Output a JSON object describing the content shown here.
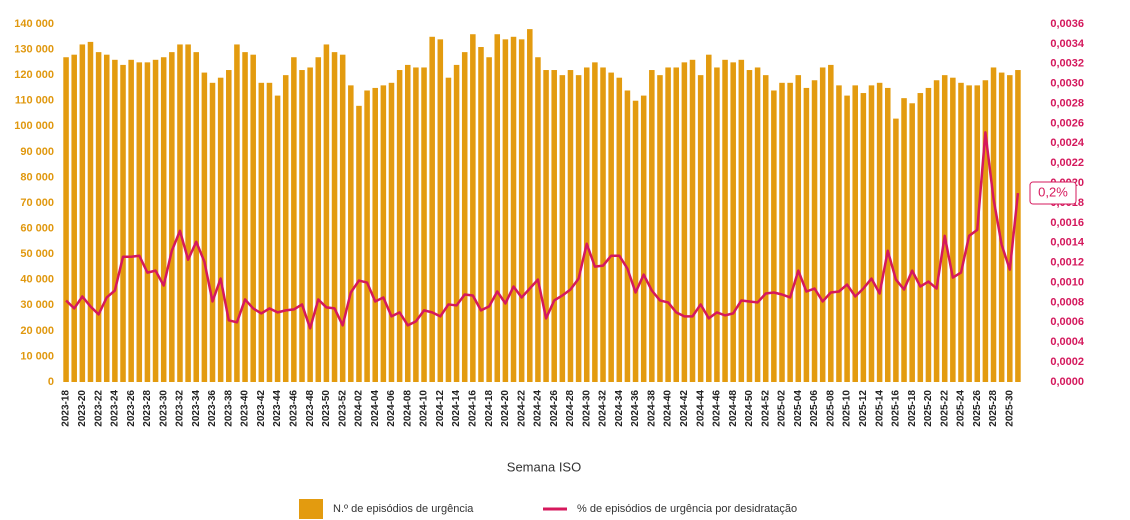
{
  "chart_data": {
    "type": "bar_line",
    "x_label": "Semana ISO",
    "annotation": "0,2%",
    "categories": [
      "2023-18",
      null,
      "2023-20",
      null,
      "2023-22",
      null,
      "2023-24",
      null,
      "2023-26",
      null,
      "2023-28",
      null,
      "2023-30",
      null,
      "2023-32",
      null,
      "2023-34",
      null,
      "2023-36",
      null,
      "2023-38",
      null,
      "2023-40",
      null,
      "2023-42",
      null,
      "2023-44",
      null,
      "2023-46",
      null,
      "2023-48",
      null,
      "2023-50",
      null,
      "2023-52",
      null,
      "2024-02",
      null,
      "2024-04",
      null,
      "2024-06",
      null,
      "2024-08",
      null,
      "2024-10",
      null,
      "2024-12",
      null,
      "2024-14",
      null,
      "2024-16",
      null,
      "2024-18",
      null,
      "2024-20",
      null,
      "2024-22",
      null,
      "2024-24",
      null,
      "2024-26",
      null,
      "2024-28",
      null,
      "2024-30",
      null,
      "2024-32",
      null,
      "2024-34",
      null,
      "2024-36",
      null,
      "2024-38",
      null,
      "2024-40",
      null,
      "2024-42",
      null,
      "2024-44",
      null,
      "2024-46",
      null,
      "2024-48",
      null,
      "2024-50",
      null,
      "2024-52",
      null,
      "2025-02",
      null,
      "2025-04",
      null,
      "2025-06",
      null,
      "2025-08",
      null,
      "2025-10",
      null,
      "2025-12",
      null,
      "2025-14",
      null,
      "2025-16",
      null,
      "2025-18",
      null,
      "2025-20",
      null,
      "2025-22",
      null,
      "2025-24",
      null,
      "2025-26",
      null,
      "2025-28",
      null,
      "2025-30",
      null
    ],
    "series": [
      {
        "name": "N.º de episódios de urgência",
        "color": "#e39b0f",
        "values": [
          127000,
          128000,
          132000,
          133000,
          129000,
          128000,
          126000,
          124000,
          126000,
          125000,
          125000,
          126000,
          127000,
          129000,
          132000,
          132000,
          129000,
          121000,
          117000,
          119000,
          122000,
          132000,
          129000,
          128000,
          117000,
          117000,
          112000,
          120000,
          127000,
          122000,
          123000,
          127000,
          132000,
          129000,
          128000,
          116000,
          108000,
          114000,
          115000,
          116000,
          117000,
          122000,
          124000,
          123000,
          123000,
          135000,
          134000,
          119000,
          124000,
          129000,
          136000,
          131000,
          127000,
          136000,
          134000,
          135000,
          134000,
          138000,
          127000,
          122000,
          122000,
          120000,
          122000,
          120000,
          123000,
          125000,
          123000,
          121000,
          119000,
          114000,
          110000,
          112000,
          122000,
          120000,
          123000,
          123000,
          125000,
          126000,
          120000,
          128000,
          123000,
          126000,
          125000,
          126000,
          122000,
          123000,
          120000,
          114000,
          117000,
          117000,
          120000,
          115000,
          118000,
          123000,
          124000,
          116000,
          112000,
          116000,
          113000,
          116000,
          117000,
          115000,
          103000,
          111000,
          109000,
          113000,
          115000,
          118000,
          120000,
          119000,
          117000,
          116000,
          116000,
          118000,
          123000,
          121000,
          120000,
          122000
        ]
      },
      {
        "name": "% de episódios de urgência por desidratação",
        "color": "#d6185c",
        "axis": "y2",
        "values": [
          0.00082,
          0.00074,
          0.00086,
          0.00076,
          0.00068,
          0.00085,
          0.00092,
          0.00126,
          0.00126,
          0.00127,
          0.0011,
          0.00112,
          0.00097,
          0.00132,
          0.00152,
          0.00123,
          0.00141,
          0.00121,
          0.00081,
          0.00104,
          0.00062,
          0.0006,
          0.00083,
          0.00074,
          0.00069,
          0.00074,
          0.0007,
          0.00072,
          0.00073,
          0.00078,
          0.00054,
          0.00083,
          0.00075,
          0.00074,
          0.00057,
          0.0009,
          0.00102,
          0.001,
          0.00081,
          0.00085,
          0.00066,
          0.0007,
          0.00057,
          0.00061,
          0.00072,
          0.0007,
          0.00066,
          0.00078,
          0.00077,
          0.00088,
          0.00087,
          0.00072,
          0.00076,
          0.00091,
          0.00079,
          0.00096,
          0.00085,
          0.00094,
          0.00103,
          0.00064,
          0.00082,
          0.00087,
          0.00093,
          0.00104,
          0.00139,
          0.00116,
          0.00117,
          0.00127,
          0.00127,
          0.00114,
          0.0009,
          0.00108,
          0.00092,
          0.00082,
          0.0008,
          0.0007,
          0.00066,
          0.00066,
          0.00078,
          0.00064,
          0.0007,
          0.00067,
          0.00069,
          0.00082,
          0.00081,
          0.0008,
          0.00089,
          0.0009,
          0.00088,
          0.00085,
          0.00112,
          0.00091,
          0.00094,
          0.00081,
          0.0009,
          0.00091,
          0.00098,
          0.00086,
          0.00094,
          0.00104,
          0.00089,
          0.00132,
          0.00103,
          0.00093,
          0.00112,
          0.00096,
          0.00101,
          0.00094,
          0.00147,
          0.00105,
          0.0011,
          0.00147,
          0.00153,
          0.00251,
          0.00184,
          0.00138,
          0.00113,
          0.0019
        ]
      }
    ],
    "ylim": [
      0,
      140000
    ],
    "yticks": [
      0,
      {
        "value": 10000,
        "label": "10 000"
      },
      {
        "value": 20000,
        "label": "20 000"
      },
      {
        "value": 30000,
        "label": "30 000"
      },
      {
        "value": 40000,
        "label": "40 000"
      },
      {
        "value": 50000,
        "label": "50 000"
      },
      {
        "value": 60000,
        "label": "60 000"
      },
      {
        "value": 70000,
        "label": "70 000"
      },
      {
        "value": 80000,
        "label": "80 000"
      },
      {
        "value": 90000,
        "label": "90 000"
      },
      {
        "value": 100000,
        "label": "100 000"
      },
      {
        "value": 110000,
        "label": "110 000"
      },
      {
        "value": 120000,
        "label": "120 000"
      },
      {
        "value": 130000,
        "label": "130 000"
      },
      {
        "value": 140000,
        "label": "140 000"
      }
    ],
    "y2lim": [
      0,
      0.0036
    ],
    "y2ticks": [
      {
        "value": 0,
        "label": "0,0000"
      },
      {
        "value": 0.0002,
        "label": "0,0002"
      },
      {
        "value": 0.0004,
        "label": "0,0004"
      },
      {
        "value": 0.0006,
        "label": "0,0006"
      },
      {
        "value": 0.0008,
        "label": "0,0008"
      },
      {
        "value": 0.001,
        "label": "0,0010"
      },
      {
        "value": 0.0012,
        "label": "0,0012"
      },
      {
        "value": 0.0014,
        "label": "0,0014"
      },
      {
        "value": 0.0016,
        "label": "0,0016"
      },
      {
        "value": 0.0018,
        "label": "0,0018"
      },
      {
        "value": 0.002,
        "label": "0,0020"
      },
      {
        "value": 0.0022,
        "label": "0,0022"
      },
      {
        "value": 0.0024,
        "label": "0,0024"
      },
      {
        "value": 0.0026,
        "label": "0,0026"
      },
      {
        "value": 0.0028,
        "label": "0,0028"
      },
      {
        "value": 0.003,
        "label": "0,0030"
      },
      {
        "value": 0.0032,
        "label": "0,0032"
      },
      {
        "value": 0.0034,
        "label": "0,0034"
      },
      {
        "value": 0.0036,
        "label": "0,0036"
      }
    ]
  }
}
